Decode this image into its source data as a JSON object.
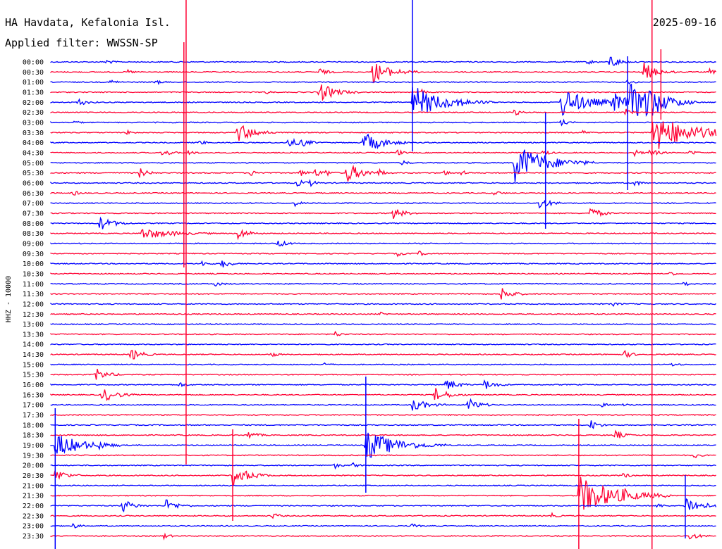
{
  "chart_data": {
    "type": "line",
    "title": "HA Havdata, Kefalonia Isl.",
    "subtitle": "Applied filter: WWSSN-SP",
    "date": "2025-09-16",
    "ylabel": "HHZ - 10000",
    "row_labels": [
      "00:00",
      "00:30",
      "01:00",
      "01:30",
      "02:00",
      "02:30",
      "03:00",
      "03:30",
      "04:00",
      "04:30",
      "05:00",
      "05:30",
      "06:00",
      "06:30",
      "07:00",
      "07:30",
      "08:00",
      "08:30",
      "09:00",
      "09:30",
      "10:00",
      "10:30",
      "11:00",
      "11:30",
      "12:00",
      "12:30",
      "13:00",
      "13:30",
      "14:00",
      "14:30",
      "15:00",
      "15:30",
      "16:00",
      "16:30",
      "17:00",
      "17:30",
      "18:00",
      "18:30",
      "19:00",
      "19:30",
      "20:00",
      "20:30",
      "21:00",
      "21:30",
      "22:00",
      "22:30",
      "23:00",
      "23:30"
    ],
    "colors": [
      "#0000ff",
      "#ff0033"
    ],
    "x_range_minutes": [
      0,
      30
    ],
    "events": [
      {
        "row": 0,
        "t": 2.5,
        "amp": 4,
        "dur": 0.2
      },
      {
        "row": 0,
        "t": 24.2,
        "amp": 4,
        "dur": 0.2
      },
      {
        "row": 0,
        "t": 25.2,
        "amp": 12,
        "dur": 0.3
      },
      {
        "row": 1,
        "t": 3.4,
        "amp": 4,
        "dur": 0.2
      },
      {
        "row": 1,
        "t": 12.1,
        "amp": 5,
        "dur": 0.3
      },
      {
        "row": 1,
        "t": 14.5,
        "amp": 16,
        "dur": 0.7
      },
      {
        "row": 1,
        "t": 26.7,
        "amp": 14,
        "dur": 0.5
      },
      {
        "row": 1,
        "t": 29.7,
        "amp": 4,
        "dur": 0.2
      },
      {
        "row": 2,
        "t": 2.7,
        "amp": 4,
        "dur": 0.2
      },
      {
        "row": 2,
        "t": 4.7,
        "amp": 4,
        "dur": 0.2
      },
      {
        "row": 2,
        "t": 26.0,
        "amp": 4,
        "dur": 0.2
      },
      {
        "row": 3,
        "t": 9.6,
        "amp": 4,
        "dur": 0.2
      },
      {
        "row": 3,
        "t": 12.1,
        "amp": 14,
        "dur": 0.6
      },
      {
        "row": 3,
        "t": 16.7,
        "amp": 4,
        "dur": 0.2
      },
      {
        "row": 4,
        "t": 1.2,
        "amp": 6,
        "dur": 0.3
      },
      {
        "row": 4,
        "t": 16.3,
        "amp": 24,
        "dur": 1.2
      },
      {
        "row": 4,
        "t": 18.2,
        "amp": 5,
        "dur": 0.2
      },
      {
        "row": 4,
        "t": 23.0,
        "amp": 22,
        "dur": 1.0
      },
      {
        "row": 4,
        "t": 25.3,
        "amp": 14,
        "dur": 0.6
      },
      {
        "row": 4,
        "t": 26.1,
        "amp": 24,
        "dur": 1.0
      },
      {
        "row": 4,
        "t": 26.8,
        "amp": 16,
        "dur": 0.7
      },
      {
        "row": 5,
        "t": 20.9,
        "amp": 5,
        "dur": 0.2
      },
      {
        "row": 5,
        "t": 25.9,
        "amp": 5,
        "dur": 0.2
      },
      {
        "row": 6,
        "t": 1.0,
        "amp": 3,
        "dur": 0.2
      },
      {
        "row": 6,
        "t": 23.0,
        "amp": 5,
        "dur": 0.2
      },
      {
        "row": 7,
        "t": 3.4,
        "amp": 4,
        "dur": 0.2
      },
      {
        "row": 7,
        "t": 8.4,
        "amp": 15,
        "dur": 0.6
      },
      {
        "row": 7,
        "t": 23.9,
        "amp": 4,
        "dur": 0.2
      },
      {
        "row": 7,
        "t": 27.1,
        "amp": 28,
        "dur": 1.5
      },
      {
        "row": 8,
        "t": 6.7,
        "amp": 4,
        "dur": 0.2
      },
      {
        "row": 8,
        "t": 10.7,
        "amp": 7,
        "dur": 0.4
      },
      {
        "row": 8,
        "t": 11.3,
        "amp": 5,
        "dur": 0.3
      },
      {
        "row": 8,
        "t": 14.1,
        "amp": 16,
        "dur": 0.7
      },
      {
        "row": 9,
        "t": 5.0,
        "amp": 6,
        "dur": 0.3
      },
      {
        "row": 9,
        "t": 6.2,
        "amp": 4,
        "dur": 0.2
      },
      {
        "row": 9,
        "t": 15.6,
        "amp": 5,
        "dur": 0.2
      },
      {
        "row": 9,
        "t": 22.2,
        "amp": 5,
        "dur": 0.2
      },
      {
        "row": 9,
        "t": 26.3,
        "amp": 5,
        "dur": 0.2
      },
      {
        "row": 9,
        "t": 27.0,
        "amp": 6,
        "dur": 0.3
      },
      {
        "row": 9,
        "t": 28.8,
        "amp": 4,
        "dur": 0.2
      },
      {
        "row": 10,
        "t": 15.8,
        "amp": 4,
        "dur": 0.2
      },
      {
        "row": 10,
        "t": 20.9,
        "amp": 28,
        "dur": 1.2
      },
      {
        "row": 11,
        "t": 4.0,
        "amp": 7,
        "dur": 0.3
      },
      {
        "row": 11,
        "t": 9.0,
        "amp": 4,
        "dur": 0.3
      },
      {
        "row": 11,
        "t": 11.2,
        "amp": 5,
        "dur": 0.3
      },
      {
        "row": 11,
        "t": 11.9,
        "amp": 5,
        "dur": 0.3
      },
      {
        "row": 11,
        "t": 12.4,
        "amp": 4,
        "dur": 0.2
      },
      {
        "row": 11,
        "t": 13.3,
        "amp": 15,
        "dur": 0.6
      },
      {
        "row": 11,
        "t": 14.8,
        "amp": 4,
        "dur": 0.2
      },
      {
        "row": 11,
        "t": 17.7,
        "amp": 4,
        "dur": 0.2
      },
      {
        "row": 11,
        "t": 18.5,
        "amp": 4,
        "dur": 0.2
      },
      {
        "row": 12,
        "t": 11.1,
        "amp": 5,
        "dur": 0.3
      },
      {
        "row": 12,
        "t": 11.7,
        "amp": 4,
        "dur": 0.2
      },
      {
        "row": 12,
        "t": 26.3,
        "amp": 5,
        "dur": 0.2
      },
      {
        "row": 13,
        "t": 1.0,
        "amp": 4,
        "dur": 0.2
      },
      {
        "row": 13,
        "t": 20.0,
        "amp": 4,
        "dur": 0.2
      },
      {
        "row": 14,
        "t": 11.0,
        "amp": 4,
        "dur": 0.2
      },
      {
        "row": 14,
        "t": 22.0,
        "amp": 9,
        "dur": 0.4
      },
      {
        "row": 15,
        "t": 15.4,
        "amp": 9,
        "dur": 0.4
      },
      {
        "row": 15,
        "t": 24.3,
        "amp": 9,
        "dur": 0.4
      },
      {
        "row": 16,
        "t": 2.2,
        "amp": 10,
        "dur": 0.5
      },
      {
        "row": 17,
        "t": 4.1,
        "amp": 8,
        "dur": 1.1
      },
      {
        "row": 17,
        "t": 8.4,
        "amp": 9,
        "dur": 0.4
      },
      {
        "row": 18,
        "t": 10.2,
        "amp": 6,
        "dur": 0.3
      },
      {
        "row": 19,
        "t": 15.6,
        "amp": 4,
        "dur": 0.2
      },
      {
        "row": 19,
        "t": 16.6,
        "amp": 4,
        "dur": 0.2
      },
      {
        "row": 20,
        "t": 6.8,
        "amp": 4,
        "dur": 0.2
      },
      {
        "row": 20,
        "t": 7.7,
        "amp": 7,
        "dur": 0.3
      },
      {
        "row": 21,
        "t": 27.8,
        "amp": 5,
        "dur": 0.2
      },
      {
        "row": 22,
        "t": 7.4,
        "amp": 4,
        "dur": 0.2
      },
      {
        "row": 22,
        "t": 28.5,
        "amp": 4,
        "dur": 0.2
      },
      {
        "row": 23,
        "t": 20.3,
        "amp": 10,
        "dur": 0.4
      },
      {
        "row": 24,
        "t": 25.3,
        "amp": 3,
        "dur": 0.2
      },
      {
        "row": 25,
        "t": 14.8,
        "amp": 3,
        "dur": 0.2
      },
      {
        "row": 27,
        "t": 12.8,
        "amp": 4,
        "dur": 0.2
      },
      {
        "row": 29,
        "t": 3.6,
        "amp": 9,
        "dur": 0.4
      },
      {
        "row": 29,
        "t": 9.9,
        "amp": 5,
        "dur": 0.2
      },
      {
        "row": 29,
        "t": 25.8,
        "amp": 6,
        "dur": 0.3
      },
      {
        "row": 30,
        "t": 12.3,
        "amp": 3,
        "dur": 0.2
      },
      {
        "row": 30,
        "t": 28.0,
        "amp": 3,
        "dur": 0.2
      },
      {
        "row": 31,
        "t": 2.0,
        "amp": 10,
        "dur": 0.4
      },
      {
        "row": 32,
        "t": 5.8,
        "amp": 4,
        "dur": 0.2
      },
      {
        "row": 32,
        "t": 17.8,
        "amp": 9,
        "dur": 0.4
      },
      {
        "row": 32,
        "t": 19.5,
        "amp": 8,
        "dur": 0.4
      },
      {
        "row": 33,
        "t": 2.3,
        "amp": 12,
        "dur": 0.5
      },
      {
        "row": 33,
        "t": 17.3,
        "amp": 10,
        "dur": 0.5
      },
      {
        "row": 34,
        "t": 16.3,
        "amp": 10,
        "dur": 0.5
      },
      {
        "row": 34,
        "t": 18.8,
        "amp": 10,
        "dur": 0.4
      },
      {
        "row": 34,
        "t": 24.8,
        "amp": 3,
        "dur": 0.2
      },
      {
        "row": 34,
        "t": 25.8,
        "amp": 3,
        "dur": 0.2
      },
      {
        "row": 36,
        "t": 24.3,
        "amp": 8,
        "dur": 0.3
      },
      {
        "row": 37,
        "t": 8.9,
        "amp": 6,
        "dur": 0.3
      },
      {
        "row": 37,
        "t": 25.4,
        "amp": 8,
        "dur": 0.3
      },
      {
        "row": 38,
        "t": 0.2,
        "amp": 18,
        "dur": 1.0
      },
      {
        "row": 38,
        "t": 2.2,
        "amp": 4,
        "dur": 0.2
      },
      {
        "row": 38,
        "t": 14.2,
        "amp": 22,
        "dur": 1.2
      },
      {
        "row": 39,
        "t": 29.0,
        "amp": 4,
        "dur": 0.2
      },
      {
        "row": 40,
        "t": 12.8,
        "amp": 4,
        "dur": 0.2
      },
      {
        "row": 40,
        "t": 13.6,
        "amp": 4,
        "dur": 0.2
      },
      {
        "row": 41,
        "t": 0.2,
        "amp": 10,
        "dur": 0.4
      },
      {
        "row": 41,
        "t": 8.2,
        "amp": 16,
        "dur": 0.6
      },
      {
        "row": 41,
        "t": 25.8,
        "amp": 4,
        "dur": 0.2
      },
      {
        "row": 43,
        "t": 23.8,
        "amp": 28,
        "dur": 1.4
      },
      {
        "row": 43,
        "t": 25.8,
        "amp": 4,
        "dur": 0.2
      },
      {
        "row": 44,
        "t": 3.2,
        "amp": 10,
        "dur": 0.4
      },
      {
        "row": 44,
        "t": 5.2,
        "amp": 9,
        "dur": 0.4
      },
      {
        "row": 44,
        "t": 27.3,
        "amp": 4,
        "dur": 0.2
      },
      {
        "row": 44,
        "t": 28.6,
        "amp": 14,
        "dur": 0.6
      },
      {
        "row": 45,
        "t": 10.0,
        "amp": 5,
        "dur": 0.2
      },
      {
        "row": 45,
        "t": 22.5,
        "amp": 5,
        "dur": 0.2
      },
      {
        "row": 46,
        "t": 1.0,
        "amp": 4,
        "dur": 0.2
      },
      {
        "row": 46,
        "t": 16.2,
        "amp": 4,
        "dur": 0.2
      },
      {
        "row": 47,
        "t": 5.1,
        "amp": 4,
        "dur": 0.2
      },
      {
        "row": 47,
        "t": 28.8,
        "amp": 6,
        "dur": 0.3
      }
    ],
    "spikes": [
      {
        "t": 6.1,
        "y_top": 0,
        "y_bottom": 660,
        "color": "#ff0033"
      },
      {
        "t": 6.0,
        "y_top": 60,
        "y_bottom": 380,
        "color": "#ff0033"
      },
      {
        "t": 16.3,
        "y_top": 0,
        "y_bottom": 215,
        "color": "#0000ff"
      },
      {
        "t": 22.3,
        "y_top": 160,
        "y_bottom": 325,
        "color": "#0000ff"
      },
      {
        "t": 26.0,
        "y_top": 80,
        "y_bottom": 270,
        "color": "#0000ff"
      },
      {
        "t": 27.1,
        "y_top": 0,
        "y_bottom": 780,
        "color": "#ff0033"
      },
      {
        "t": 27.5,
        "y_top": 70,
        "y_bottom": 170,
        "color": "#ff0033"
      },
      {
        "t": 14.2,
        "y_top": 535,
        "y_bottom": 700,
        "color": "#0000ff"
      },
      {
        "t": 8.2,
        "y_top": 610,
        "y_bottom": 740,
        "color": "#ff0033"
      },
      {
        "t": 23.8,
        "y_top": 595,
        "y_bottom": 780,
        "color": "#ff0033"
      },
      {
        "t": 28.6,
        "y_top": 675,
        "y_bottom": 765,
        "color": "#0000ff"
      },
      {
        "t": 0.2,
        "y_top": 580,
        "y_bottom": 780,
        "color": "#0000ff"
      }
    ]
  }
}
